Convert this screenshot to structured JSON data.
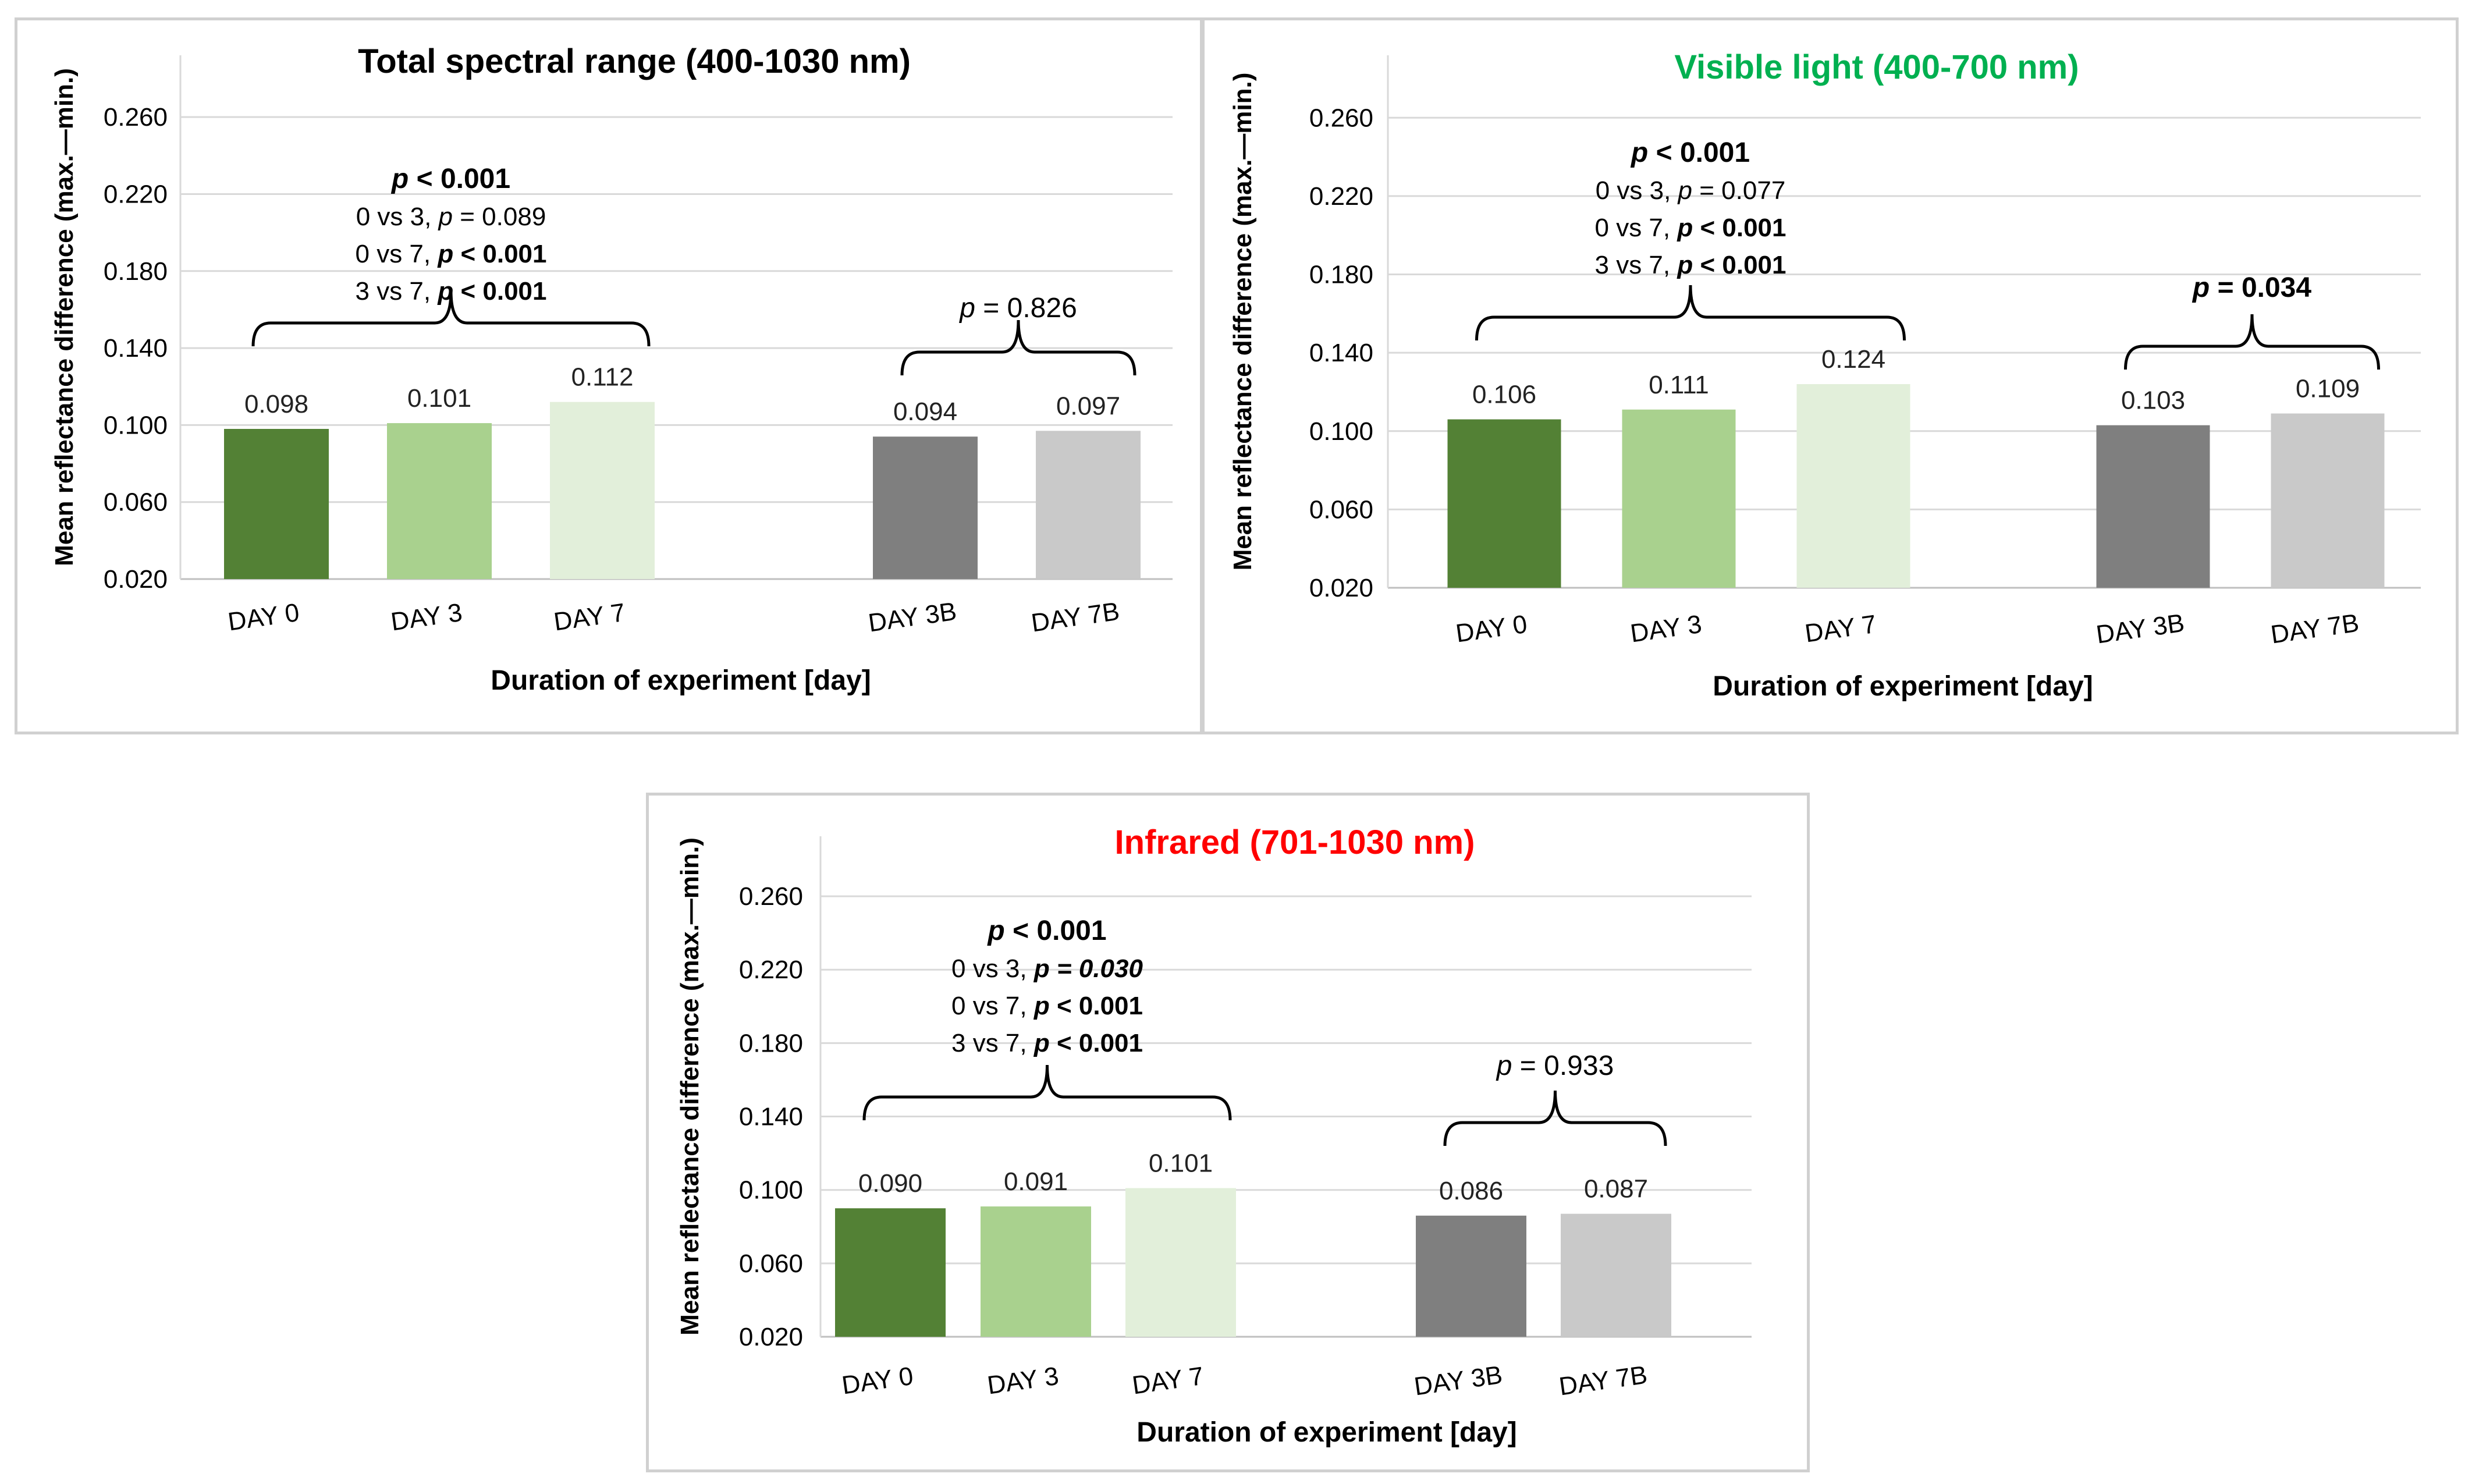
{
  "chart_data": [
    {
      "type": "bar",
      "title": "Total spectral range (400-1030 nm)",
      "title_color": "#000000",
      "xlabel": "Duration of experiment [day]",
      "ylabel": "Mean reflectance difference (max.—min.)",
      "ylim": [
        0.02,
        0.28
      ],
      "yticks": [
        "0.020",
        "0.060",
        "0.100",
        "0.140",
        "0.180",
        "0.220",
        "0.260"
      ],
      "grid": true,
      "categories": [
        "DAY 0",
        "DAY 3",
        "DAY 7",
        "DAY 3B",
        "DAY 7B"
      ],
      "values": [
        0.098,
        0.101,
        0.112,
        0.094,
        0.097
      ],
      "value_labels": [
        "0.098",
        "0.101",
        "0.112",
        "0.094",
        "0.097"
      ],
      "bar_colors": [
        "#538135",
        "#a9d18e",
        "#e2efda",
        "#7f7f7f",
        "#c9c9c9"
      ],
      "annotations": [
        {
          "bars": [
            0,
            2
          ],
          "lines": [
            [
              {
                "t": "p",
                "i": true,
                "b": true
              },
              {
                "t": " < 0.001",
                "b": true
              }
            ],
            [
              {
                "t": "0 vs 3, "
              },
              {
                "t": "p",
                "i": true
              },
              {
                "t": " = 0.089"
              }
            ],
            [
              {
                "t": "0 vs 7, "
              },
              {
                "t": "p",
                "i": true,
                "b": true
              },
              {
                "t": " < 0.001",
                "b": true
              }
            ],
            [
              {
                "t": "3 vs 7, "
              },
              {
                "t": "p",
                "i": true,
                "b": true
              },
              {
                "t": " < 0.001",
                "b": true
              }
            ]
          ]
        },
        {
          "bars": [
            3,
            4
          ],
          "lines": [
            [
              {
                "t": "p",
                "i": true
              },
              {
                "t": " = 0.826"
              }
            ]
          ]
        }
      ]
    },
    {
      "type": "bar",
      "title": "Visible light (400-700 nm)",
      "title_color": "#00b050",
      "xlabel": "Duration of experiment [day]",
      "ylabel": "Mean reflectance difference (max.—min.)",
      "ylim": [
        0.02,
        0.28
      ],
      "yticks": [
        "0.020",
        "0.060",
        "0.100",
        "0.140",
        "0.180",
        "0.220",
        "0.260"
      ],
      "grid": true,
      "categories": [
        "DAY 0",
        "DAY 3",
        "DAY 7",
        "DAY 3B",
        "DAY 7B"
      ],
      "values": [
        0.106,
        0.111,
        0.124,
        0.103,
        0.109
      ],
      "value_labels": [
        "0.106",
        "0.111",
        "0.124",
        "0.103",
        "0.109"
      ],
      "bar_colors": [
        "#538135",
        "#a9d18e",
        "#e2efda",
        "#7f7f7f",
        "#c9c9c9"
      ],
      "annotations": [
        {
          "bars": [
            0,
            2
          ],
          "lines": [
            [
              {
                "t": "p",
                "i": true,
                "b": true
              },
              {
                "t": " < 0.001",
                "b": true
              }
            ],
            [
              {
                "t": "0 vs 3, "
              },
              {
                "t": "p",
                "i": true
              },
              {
                "t": " = 0.077"
              }
            ],
            [
              {
                "t": "0 vs 7, "
              },
              {
                "t": "p",
                "i": true,
                "b": true
              },
              {
                "t": " < 0.001",
                "b": true
              }
            ],
            [
              {
                "t": "3 vs 7, "
              },
              {
                "t": "p",
                "i": true,
                "b": true
              },
              {
                "t": " < 0.001",
                "b": true
              }
            ]
          ]
        },
        {
          "bars": [
            3,
            4
          ],
          "lines": [
            [
              {
                "t": "p",
                "i": true,
                "b": true
              },
              {
                "t": " = 0.034",
                "b": true
              }
            ]
          ]
        }
      ]
    },
    {
      "type": "bar",
      "title": "Infrared (701-1030 nm)",
      "title_color": "#ff0000",
      "xlabel": "Duration of experiment [day]",
      "ylabel": "Mean reflectance difference (max.—min.)",
      "ylim": [
        0.02,
        0.28
      ],
      "yticks": [
        "0.020",
        "0.060",
        "0.100",
        "0.140",
        "0.180",
        "0.220",
        "0.260"
      ],
      "grid": true,
      "categories": [
        "DAY 0",
        "DAY 3",
        "DAY 7",
        "DAY 3B",
        "DAY 7B"
      ],
      "values": [
        0.09,
        0.091,
        0.101,
        0.086,
        0.087
      ],
      "value_labels": [
        "0.090",
        "0.091",
        "0.101",
        "0.086",
        "0.087"
      ],
      "bar_colors": [
        "#538135",
        "#a9d18e",
        "#e2efda",
        "#7f7f7f",
        "#c9c9c9"
      ],
      "annotations": [
        {
          "bars": [
            0,
            2
          ],
          "lines": [
            [
              {
                "t": "p",
                "i": true,
                "b": true
              },
              {
                "t": " < 0.001",
                "b": true
              }
            ],
            [
              {
                "t": "0 vs 3, "
              },
              {
                "t": "p = 0.030",
                "i": true,
                "b": true
              }
            ],
            [
              {
                "t": "0 vs 7, "
              },
              {
                "t": "p",
                "i": true,
                "b": true
              },
              {
                "t": " < 0.001",
                "b": true
              }
            ],
            [
              {
                "t": "3 vs 7, "
              },
              {
                "t": "p",
                "i": true,
                "b": true
              },
              {
                "t": " < 0.001",
                "b": true
              }
            ]
          ]
        },
        {
          "bars": [
            3,
            4
          ],
          "lines": [
            [
              {
                "t": "p",
                "i": true
              },
              {
                "t": " = 0.933"
              }
            ]
          ]
        }
      ]
    }
  ]
}
